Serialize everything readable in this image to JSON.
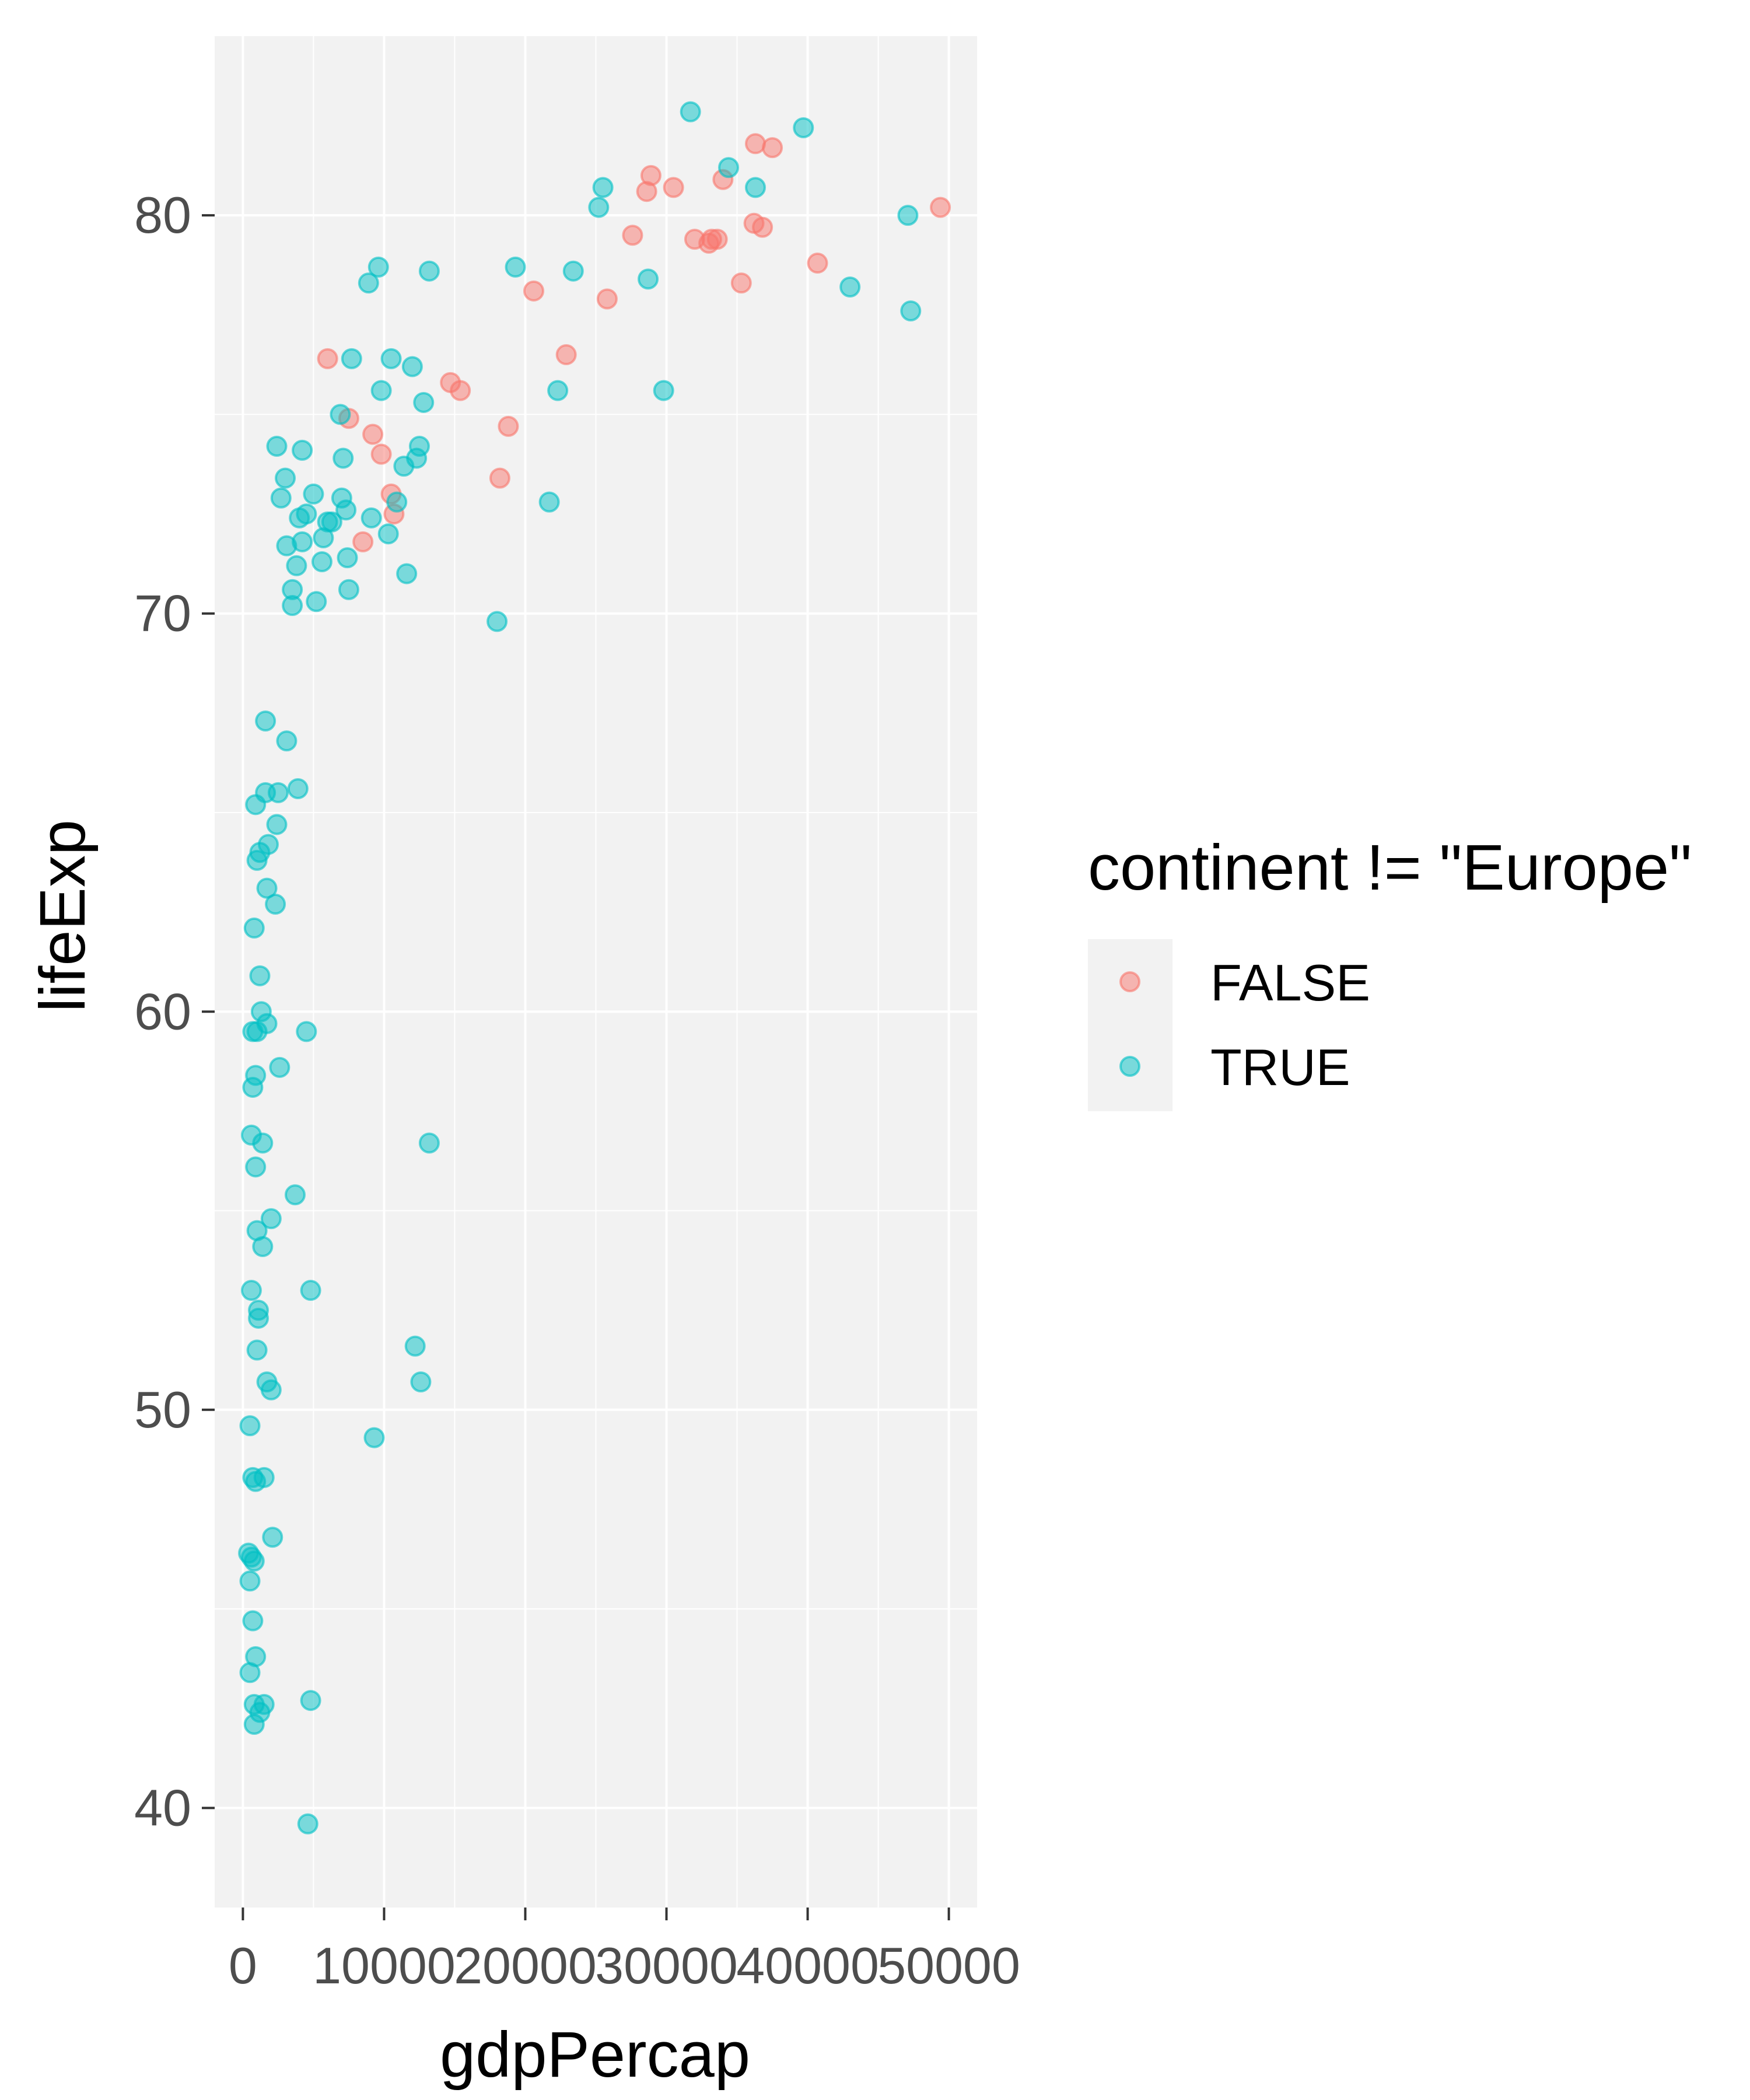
{
  "chart_data": {
    "type": "scatter",
    "title": "",
    "xlabel": "gdpPercap",
    "ylabel": "lifeExp",
    "xlim": [
      -2000,
      52000
    ],
    "ylim": [
      37.5,
      84.5
    ],
    "x_ticks": [
      0,
      10000,
      20000,
      30000,
      40000,
      50000
    ],
    "x_tick_labels": [
      "0",
      "10000",
      "20000",
      "30000",
      "40000",
      "50000"
    ],
    "y_ticks": [
      40,
      50,
      60,
      70,
      80
    ],
    "y_tick_labels": [
      "40",
      "50",
      "60",
      "70",
      "80"
    ],
    "grid": true,
    "legend": {
      "title": "continent != \"Europe\"",
      "position": "right",
      "entries": [
        "FALSE",
        "TRUE"
      ]
    },
    "series": [
      {
        "name": "FALSE",
        "color": "#F8766D",
        "points": [
          [
            6000,
            76.4
          ],
          [
            7500,
            74.9
          ],
          [
            8500,
            71.8
          ],
          [
            9200,
            74.5
          ],
          [
            9800,
            74.0
          ],
          [
            10500,
            73.0
          ],
          [
            10700,
            72.5
          ],
          [
            14700,
            75.8
          ],
          [
            15400,
            75.6
          ],
          [
            18200,
            73.4
          ],
          [
            18800,
            74.7
          ],
          [
            20600,
            78.1
          ],
          [
            22900,
            76.5
          ],
          [
            25800,
            77.9
          ],
          [
            27600,
            79.5
          ],
          [
            28600,
            80.6
          ],
          [
            28900,
            81.0
          ],
          [
            30500,
            80.7
          ],
          [
            32000,
            79.4
          ],
          [
            33000,
            79.3
          ],
          [
            33200,
            79.4
          ],
          [
            33600,
            79.4
          ],
          [
            34000,
            80.9
          ],
          [
            35300,
            78.3
          ],
          [
            36200,
            79.8
          ],
          [
            36300,
            81.8
          ],
          [
            36800,
            79.7
          ],
          [
            37500,
            81.7
          ],
          [
            40700,
            78.8
          ],
          [
            49400,
            80.2
          ]
        ]
      },
      {
        "name": "TRUE",
        "color": "#00BFC4",
        "points": [
          [
            400,
            46.4
          ],
          [
            500,
            45.7
          ],
          [
            500,
            43.4
          ],
          [
            500,
            49.6
          ],
          [
            600,
            46.3
          ],
          [
            600,
            56.9
          ],
          [
            600,
            53.0
          ],
          [
            700,
            58.1
          ],
          [
            700,
            59.5
          ],
          [
            700,
            44.7
          ],
          [
            700,
            48.3
          ],
          [
            800,
            46.2
          ],
          [
            800,
            42.6
          ],
          [
            800,
            42.1
          ],
          [
            800,
            62.1
          ],
          [
            900,
            65.2
          ],
          [
            900,
            58.4
          ],
          [
            900,
            48.2
          ],
          [
            900,
            43.8
          ],
          [
            900,
            56.1
          ],
          [
            1000,
            59.5
          ],
          [
            1000,
            54.5
          ],
          [
            1000,
            63.8
          ],
          [
            1000,
            51.5
          ],
          [
            1100,
            52.5
          ],
          [
            1100,
            52.3
          ],
          [
            1200,
            60.9
          ],
          [
            1200,
            64.0
          ],
          [
            1200,
            42.4
          ],
          [
            1300,
            60.0
          ],
          [
            1400,
            56.7
          ],
          [
            1400,
            54.1
          ],
          [
            1500,
            42.6
          ],
          [
            1500,
            48.3
          ],
          [
            1600,
            67.3
          ],
          [
            1600,
            65.5
          ],
          [
            1700,
            63.1
          ],
          [
            1700,
            59.7
          ],
          [
            1700,
            50.7
          ],
          [
            1800,
            64.2
          ],
          [
            2000,
            54.8
          ],
          [
            2000,
            50.5
          ],
          [
            2100,
            46.8
          ],
          [
            2300,
            62.7
          ],
          [
            2400,
            64.7
          ],
          [
            2400,
            74.2
          ],
          [
            2500,
            65.5
          ],
          [
            2600,
            58.6
          ],
          [
            2700,
            72.9
          ],
          [
            3000,
            73.4
          ],
          [
            3100,
            66.8
          ],
          [
            3100,
            71.7
          ],
          [
            3500,
            70.6
          ],
          [
            3500,
            70.2
          ],
          [
            3700,
            55.4
          ],
          [
            3800,
            71.2
          ],
          [
            3900,
            65.6
          ],
          [
            4000,
            72.4
          ],
          [
            4200,
            74.1
          ],
          [
            4200,
            71.8
          ],
          [
            4500,
            72.5
          ],
          [
            4500,
            59.5
          ],
          [
            4600,
            39.6
          ],
          [
            4800,
            53.0
          ],
          [
            4800,
            42.7
          ],
          [
            5000,
            73.0
          ],
          [
            5200,
            70.3
          ],
          [
            5600,
            71.3
          ],
          [
            5700,
            71.9
          ],
          [
            6000,
            72.3
          ],
          [
            6300,
            72.3
          ],
          [
            6900,
            75.0
          ],
          [
            7000,
            72.9
          ],
          [
            7100,
            73.9
          ],
          [
            7300,
            72.6
          ],
          [
            7400,
            71.4
          ],
          [
            7500,
            70.6
          ],
          [
            7700,
            76.4
          ],
          [
            8900,
            78.3
          ],
          [
            9100,
            72.4
          ],
          [
            9300,
            49.3
          ],
          [
            9600,
            78.7
          ],
          [
            9800,
            75.6
          ],
          [
            10300,
            72.0
          ],
          [
            10500,
            76.4
          ],
          [
            10900,
            72.8
          ],
          [
            11400,
            73.7
          ],
          [
            11600,
            71.0
          ],
          [
            12000,
            76.2
          ],
          [
            12200,
            51.6
          ],
          [
            12300,
            73.9
          ],
          [
            12500,
            74.2
          ],
          [
            12600,
            50.7
          ],
          [
            12800,
            75.3
          ],
          [
            13200,
            78.6
          ],
          [
            13200,
            56.7
          ],
          [
            18000,
            69.8
          ],
          [
            19300,
            78.7
          ],
          [
            21700,
            72.8
          ],
          [
            22300,
            75.6
          ],
          [
            23400,
            78.6
          ],
          [
            25200,
            80.2
          ],
          [
            25500,
            80.7
          ],
          [
            28700,
            78.4
          ],
          [
            29800,
            75.6
          ],
          [
            31700,
            82.6
          ],
          [
            34400,
            81.2
          ],
          [
            36300,
            80.7
          ],
          [
            39700,
            82.2
          ],
          [
            43000,
            78.2
          ],
          [
            47100,
            80.0
          ],
          [
            47300,
            77.6
          ]
        ]
      }
    ]
  }
}
